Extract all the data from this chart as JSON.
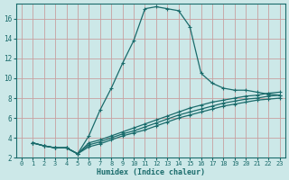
{
  "xlabel": "Humidex (Indice chaleur)",
  "xlim": [
    -0.5,
    23.5
  ],
  "ylim": [
    2,
    17.5
  ],
  "yticks": [
    2,
    4,
    6,
    8,
    10,
    12,
    14,
    16
  ],
  "xticks": [
    0,
    1,
    2,
    3,
    4,
    5,
    6,
    7,
    8,
    9,
    10,
    11,
    12,
    13,
    14,
    15,
    16,
    17,
    18,
    19,
    20,
    21,
    22,
    23
  ],
  "bg_color": "#cce8e8",
  "grid_color": "#e8a0a0",
  "line_color": "#1a6b6b",
  "lines": [
    {
      "x": [
        1,
        2,
        3,
        4,
        5,
        6,
        7,
        8,
        9,
        10,
        11,
        12,
        13,
        14,
        15,
        16,
        17,
        18,
        19,
        20,
        21,
        22,
        23
      ],
      "y": [
        3.5,
        3.2,
        3.0,
        3.0,
        2.4,
        4.2,
        6.8,
        9.0,
        11.5,
        13.8,
        17.0,
        17.2,
        17.0,
        16.8,
        15.2,
        10.5,
        9.5,
        9.0,
        8.8,
        8.8,
        8.6,
        8.4,
        8.3
      ]
    },
    {
      "x": [
        1,
        2,
        3,
        4,
        5,
        6,
        7,
        8,
        9,
        10,
        11,
        12,
        13,
        14,
        15,
        16,
        17,
        18,
        19,
        20,
        21,
        22,
        23
      ],
      "y": [
        3.5,
        3.2,
        3.0,
        3.0,
        2.4,
        3.5,
        3.8,
        4.2,
        4.6,
        5.0,
        5.4,
        5.8,
        6.2,
        6.6,
        7.0,
        7.3,
        7.6,
        7.8,
        8.0,
        8.2,
        8.3,
        8.5,
        8.6
      ]
    },
    {
      "x": [
        1,
        2,
        3,
        4,
        5,
        6,
        7,
        8,
        9,
        10,
        11,
        12,
        13,
        14,
        15,
        16,
        17,
        18,
        19,
        20,
        21,
        22,
        23
      ],
      "y": [
        3.5,
        3.2,
        3.0,
        3.0,
        2.4,
        3.3,
        3.6,
        4.0,
        4.4,
        4.7,
        5.1,
        5.5,
        5.9,
        6.3,
        6.6,
        6.9,
        7.2,
        7.5,
        7.7,
        7.9,
        8.0,
        8.2,
        8.3
      ]
    },
    {
      "x": [
        1,
        2,
        3,
        4,
        5,
        6,
        7,
        8,
        9,
        10,
        11,
        12,
        13,
        14,
        15,
        16,
        17,
        18,
        19,
        20,
        21,
        22,
        23
      ],
      "y": [
        3.5,
        3.2,
        3.0,
        3.0,
        2.4,
        3.1,
        3.4,
        3.8,
        4.2,
        4.5,
        4.8,
        5.2,
        5.6,
        6.0,
        6.3,
        6.6,
        6.9,
        7.2,
        7.4,
        7.6,
        7.8,
        7.9,
        8.0
      ]
    }
  ]
}
